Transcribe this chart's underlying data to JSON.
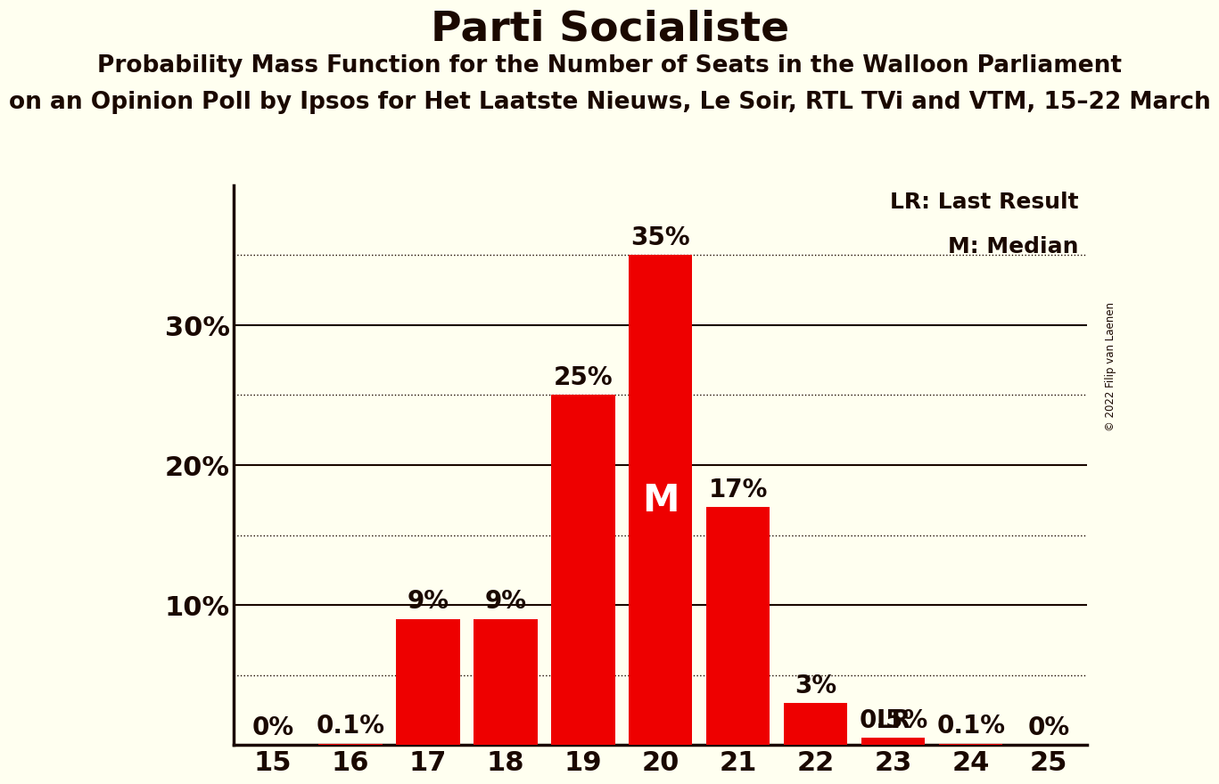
{
  "title": "Parti Socialiste",
  "subtitle1": "Probability Mass Function for the Number of Seats in the Walloon Parliament",
  "subtitle2": "on an Opinion Poll by Ipsos for Het Laatste Nieuws, Le Soir, RTL TVi and VTM, 15–22 March",
  "copyright": "© 2022 Filip van Laenen",
  "categories": [
    15,
    16,
    17,
    18,
    19,
    20,
    21,
    22,
    23,
    24,
    25
  ],
  "values": [
    0.0,
    0.1,
    9.0,
    9.0,
    25.0,
    35.0,
    17.0,
    3.0,
    0.5,
    0.1,
    0.0
  ],
  "labels": [
    "0%",
    "0.1%",
    "9%",
    "9%",
    "25%",
    "35%",
    "17%",
    "3%",
    "0.5%",
    "0.1%",
    "0%"
  ],
  "bar_color": "#ee0000",
  "background_color": "#fffff0",
  "median_seat": 20,
  "lr_seat": 23,
  "median_label": "M",
  "lr_label": "LR",
  "legend_lr": "LR: Last Result",
  "legend_m": "M: Median",
  "yticks": [
    10,
    20,
    30
  ],
  "ytick_labels": [
    "10%",
    "20%",
    "30%"
  ],
  "dotted_lines": [
    5,
    15,
    25,
    35
  ],
  "solid_lines": [
    10,
    20,
    30
  ],
  "title_fontsize": 34,
  "subtitle_fontsize": 19,
  "axis_fontsize": 22,
  "label_fontsize": 20,
  "legend_fontsize": 18,
  "median_fontsize": 30,
  "text_color": "#1a0800",
  "ylim": [
    0,
    40
  ]
}
